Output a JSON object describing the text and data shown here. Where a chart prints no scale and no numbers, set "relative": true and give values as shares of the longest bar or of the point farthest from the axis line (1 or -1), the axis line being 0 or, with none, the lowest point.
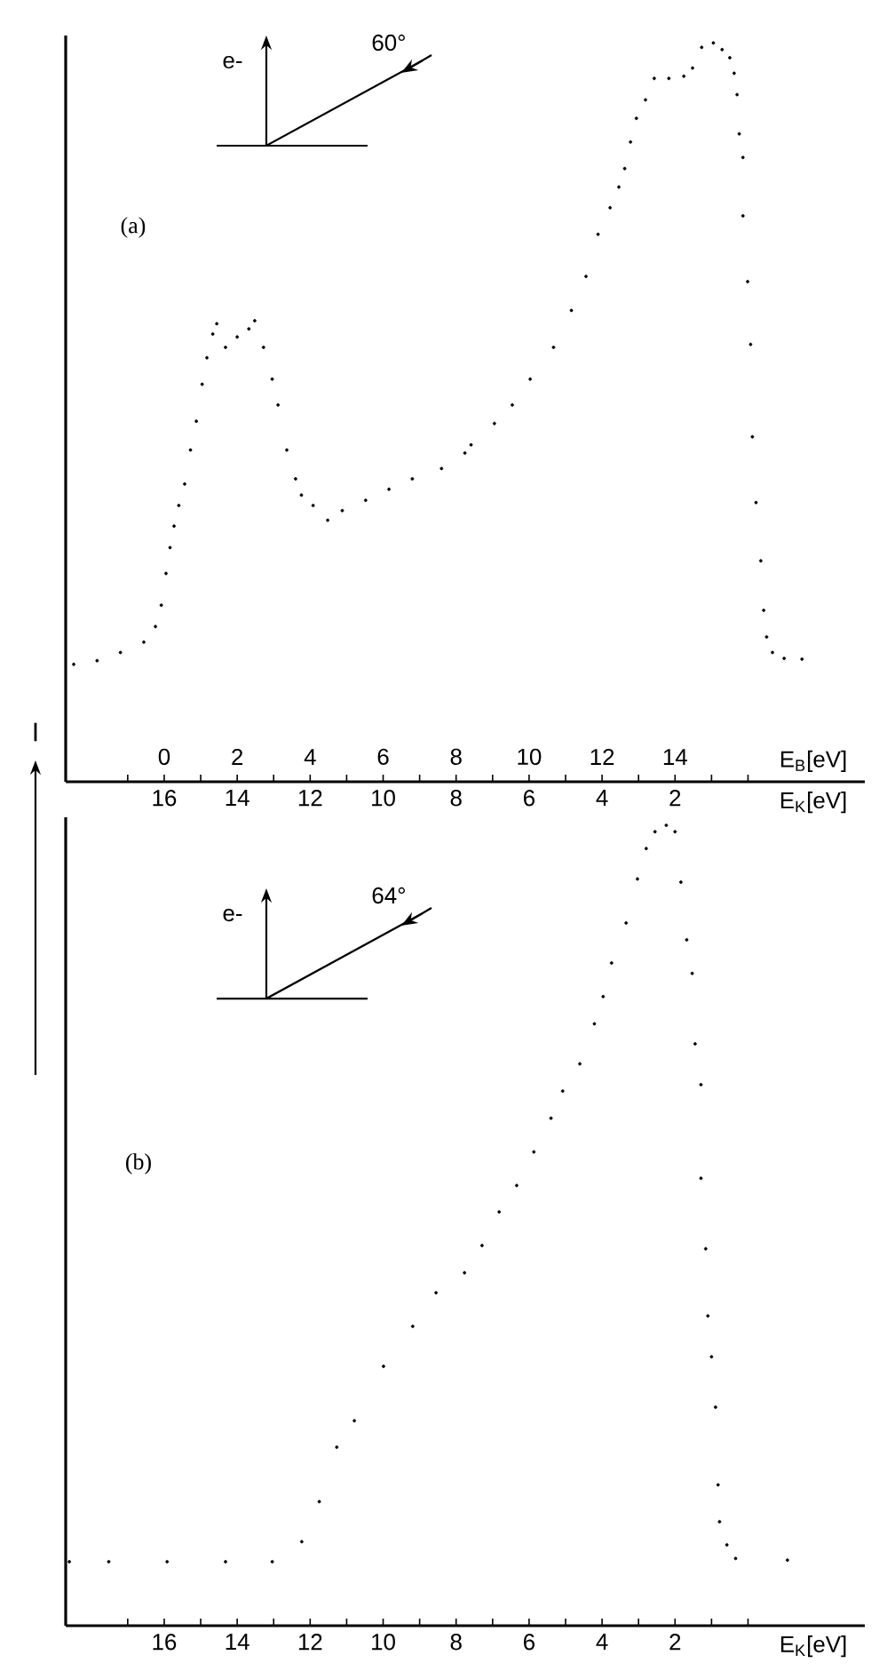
{
  "chart_data": [
    {
      "type": "scatter",
      "color": "#000000",
      "marker": "circle",
      "relative": true,
      "x": [
        18.48,
        17.84,
        17.2,
        16.56,
        16.24,
        16.08,
        15.95,
        15.84,
        15.73,
        15.6,
        15.44,
        15.28,
        15.12,
        14.96,
        14.83,
        14.67,
        14.56,
        14.32,
        14.0,
        13.68,
        13.52,
        13.28,
        13.04,
        12.88,
        12.64,
        12.4,
        12.24,
        11.92,
        11.52,
        11.12,
        10.48,
        9.84,
        9.2,
        8.4,
        7.76,
        7.59,
        6.95,
        6.46,
        5.97,
        5.33,
        4.84,
        4.44,
        4.11,
        3.78,
        3.54,
        3.38,
        3.22,
        3.06,
        2.81,
        2.57,
        2.17,
        1.76,
        1.52,
        1.27,
        0.95,
        0.71,
        0.5,
        0.38,
        0.3,
        0.24,
        0.14,
        0.14,
        0.01,
        -0.07,
        -0.12,
        -0.22,
        -0.35,
        -0.43,
        -0.51,
        -0.67,
        -0.99,
        -1.48
      ],
      "values": [
        0.159,
        0.164,
        0.175,
        0.189,
        0.21,
        0.239,
        0.282,
        0.317,
        0.346,
        0.374,
        0.403,
        0.449,
        0.488,
        0.538,
        0.574,
        0.606,
        0.62,
        0.588,
        0.602,
        0.613,
        0.624,
        0.588,
        0.545,
        0.51,
        0.449,
        0.41,
        0.388,
        0.374,
        0.354,
        0.367,
        0.381,
        0.396,
        0.41,
        0.424,
        0.445,
        0.456,
        0.485,
        0.51,
        0.545,
        0.588,
        0.638,
        0.684,
        0.741,
        0.777,
        0.805,
        0.83,
        0.866,
        0.898,
        0.923,
        0.952,
        0.952,
        0.955,
        0.966,
        0.994,
        1.0,
        0.991,
        0.98,
        0.959,
        0.93,
        0.877,
        0.845,
        0.766,
        0.677,
        0.592,
        0.467,
        0.378,
        0.299,
        0.232,
        0.196,
        0.175,
        0.167,
        0.166
      ],
      "xlim": [
        18.7,
        -3.2
      ],
      "xticks": [
        {
          "value": 17,
          "label": null
        },
        16,
        {
          "value": 15,
          "label": null
        },
        14,
        {
          "value": 13,
          "label": null
        },
        12,
        {
          "value": 11,
          "label": null
        },
        10,
        {
          "value": 9,
          "label": null
        },
        8,
        {
          "value": 7,
          "label": null
        },
        6,
        {
          "value": 5,
          "label": null
        },
        4,
        {
          "value": 3,
          "label": null
        },
        2,
        {
          "value": 1,
          "label": null
        },
        {
          "value": 0,
          "label": null
        }
      ],
      "x2lim": [
        -2.7,
        19.2
      ],
      "x2ticks": [
        0,
        2,
        4,
        6,
        8,
        10,
        12,
        14
      ],
      "xlabel": "E$_{K}$[eV]",
      "x2label": "E$_{B}$[eV]",
      "ylabel": "I",
      "annotations": [
        "(a)",
        "e-",
        "60°"
      ]
    },
    {
      "type": "scatter",
      "color": "#000000",
      "marker": "circle",
      "relative": true,
      "x": [
        18.6,
        17.52,
        15.92,
        14.32,
        13.04,
        12.23,
        11.75,
        11.27,
        10.79,
        9.99,
        9.19,
        8.55,
        7.77,
        7.29,
        6.82,
        6.34,
        5.87,
        5.4,
        5.08,
        4.61,
        4.21,
        3.97,
        3.74,
        3.34,
        3.03,
        2.79,
        2.55,
        2.24,
        2.0,
        1.84,
        1.68,
        1.53,
        1.45,
        1.29,
        1.29,
        1.16,
        1.1,
        1.0,
        0.89,
        0.82,
        0.78,
        0.58,
        0.34,
        -1.08
      ],
      "values": [
        0.08,
        0.08,
        0.08,
        0.08,
        0.08,
        0.105,
        0.155,
        0.223,
        0.256,
        0.324,
        0.374,
        0.416,
        0.441,
        0.475,
        0.517,
        0.55,
        0.592,
        0.634,
        0.668,
        0.702,
        0.752,
        0.786,
        0.828,
        0.878,
        0.933,
        0.971,
        0.992,
        1.0,
        0.992,
        0.929,
        0.857,
        0.815,
        0.727,
        0.676,
        0.559,
        0.471,
        0.387,
        0.336,
        0.273,
        0.176,
        0.13,
        0.101,
        0.084,
        0.082
      ],
      "xlim": [
        18.7,
        -3.2
      ],
      "xticks": [
        {
          "value": 17,
          "label": null
        },
        16,
        {
          "value": 15,
          "label": null
        },
        14,
        {
          "value": 13,
          "label": null
        },
        12,
        {
          "value": 11,
          "label": null
        },
        10,
        {
          "value": 9,
          "label": null
        },
        8,
        {
          "value": 7,
          "label": null
        },
        6,
        {
          "value": 5,
          "label": null
        },
        4,
        {
          "value": 3,
          "label": null
        },
        2,
        {
          "value": 1,
          "label": null
        },
        {
          "value": 0,
          "label": null
        }
      ],
      "xlabel": "E$_{K}$[eV]",
      "annotations": [
        "(b)",
        "e-",
        "64°"
      ]
    }
  ]
}
